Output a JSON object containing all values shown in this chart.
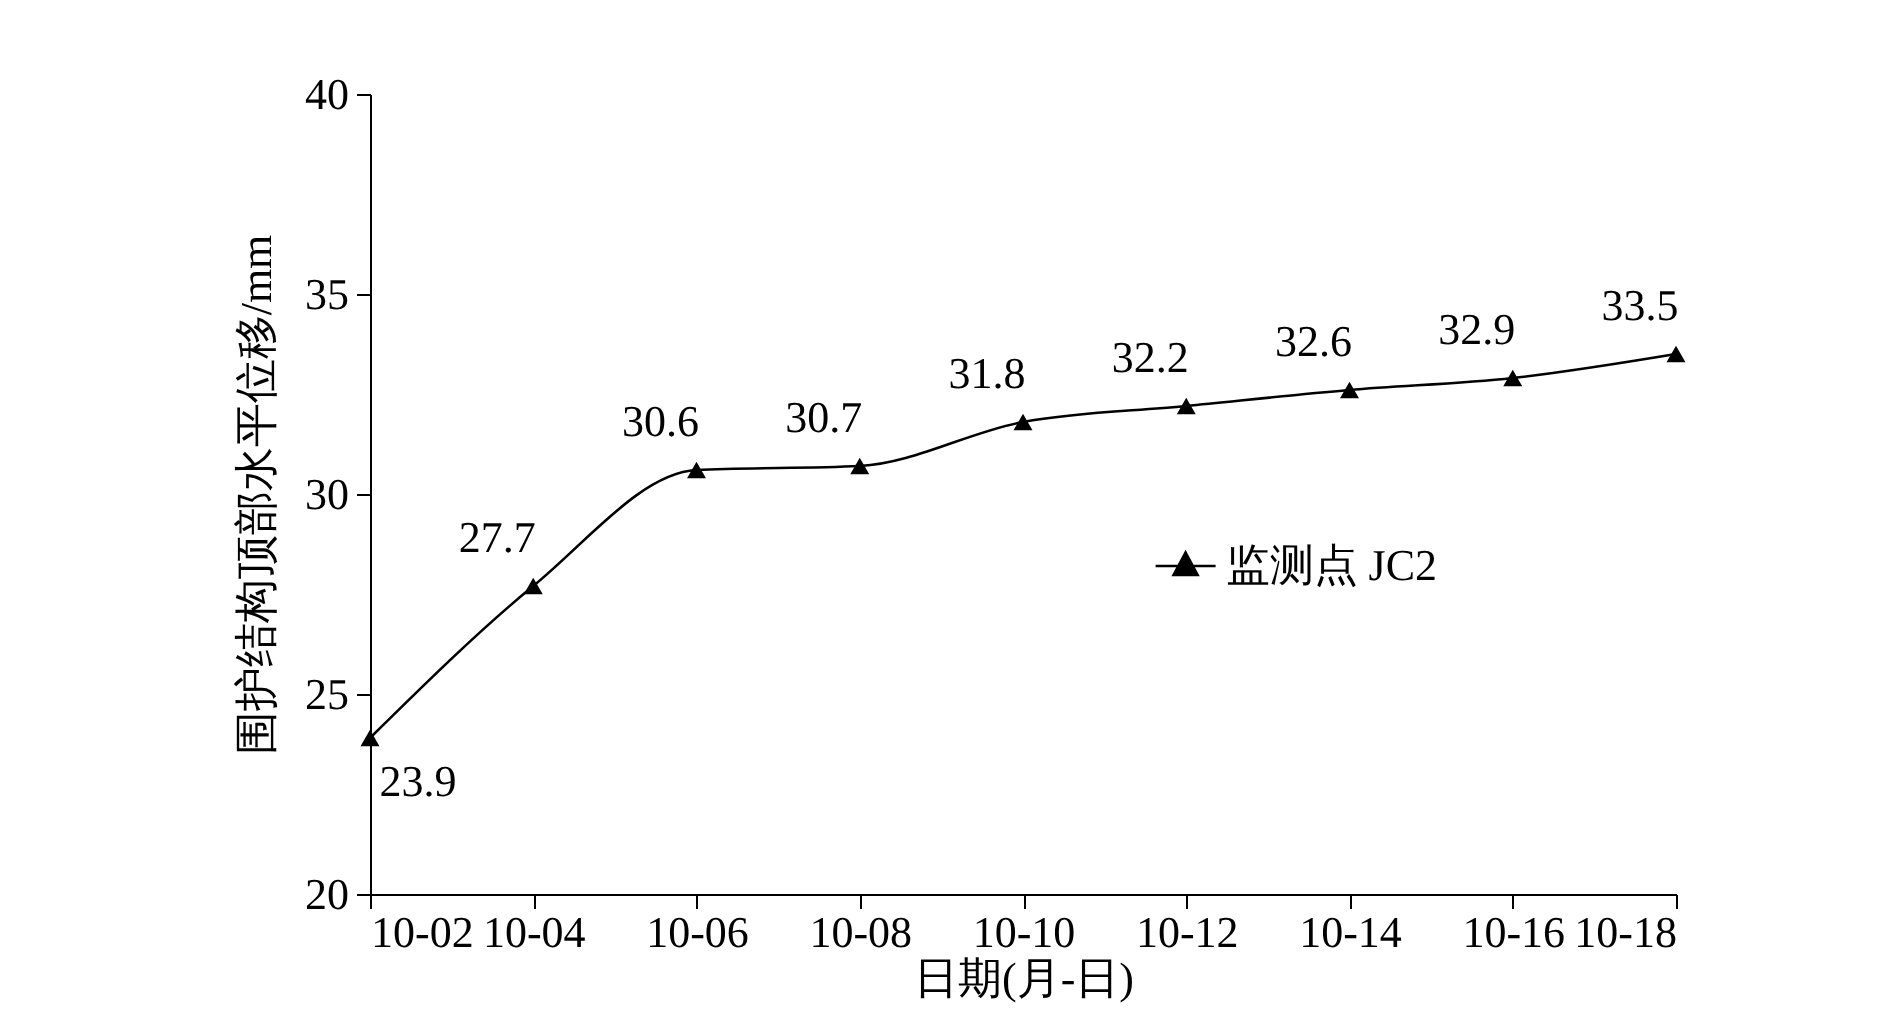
{
  "chart_data": {
    "type": "line",
    "xlabel": "日期(月-日)",
    "ylabel": "围护结构顶部水平位移/mm",
    "categories": [
      "10-02",
      "10-04",
      "10-06",
      "10-08",
      "10-10",
      "10-12",
      "10-14",
      "10-16",
      "10-18"
    ],
    "series": [
      {
        "name": "监测点 JC2",
        "color": "#000000",
        "values": [
          23.9,
          27.7,
          30.6,
          30.7,
          31.8,
          32.2,
          32.6,
          32.9,
          33.5
        ]
      }
    ],
    "ylim": [
      20,
      40
    ],
    "yticks": [
      20,
      25,
      30,
      35,
      40
    ],
    "grid": false,
    "legend": "right",
    "marker": "triangle",
    "line_style": "solid",
    "data_labels": true
  }
}
